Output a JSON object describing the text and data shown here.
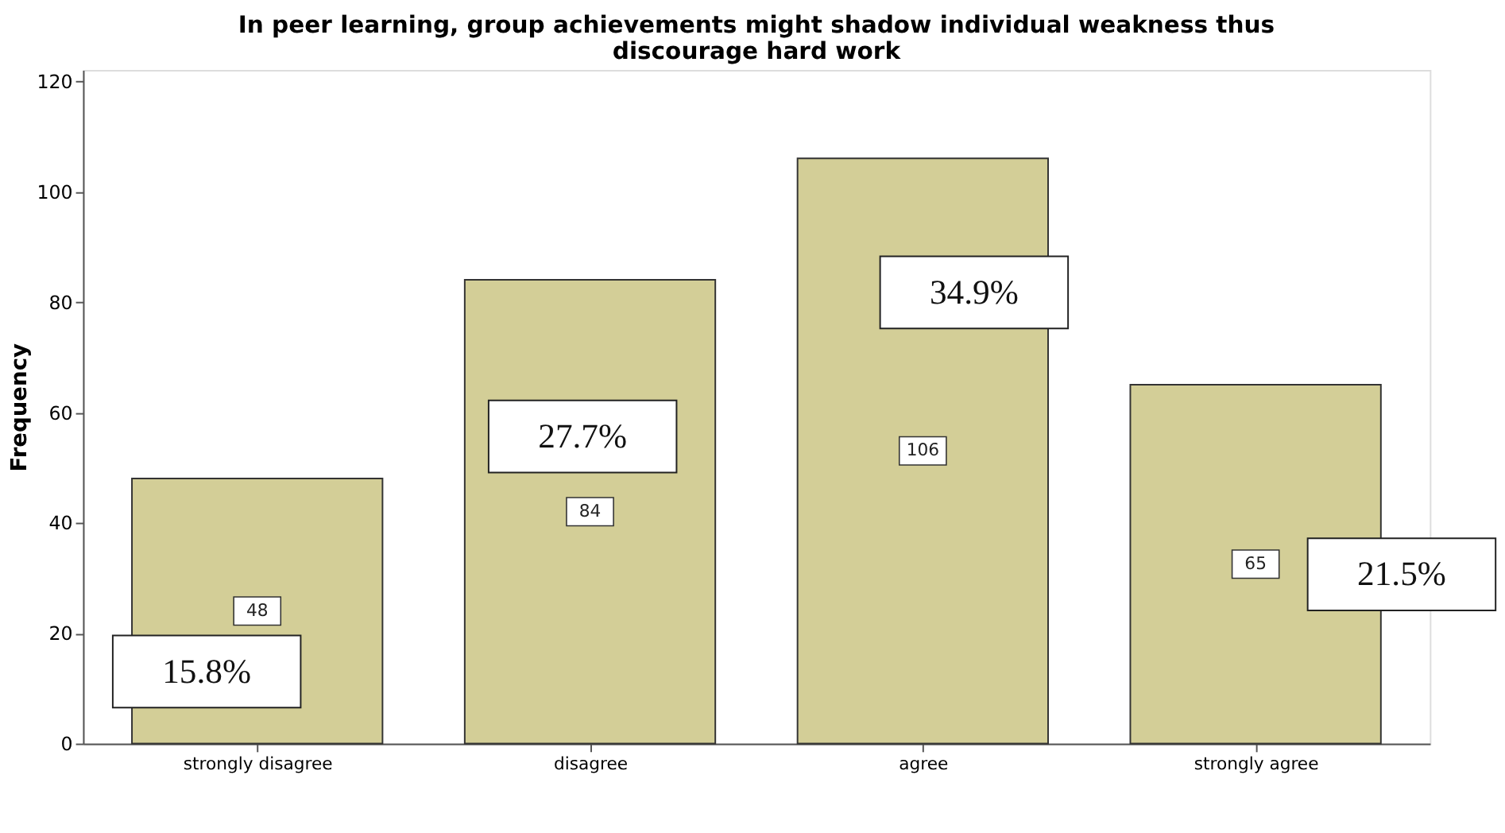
{
  "chart_data": {
    "type": "bar",
    "title": [
      "In peer learning, group achievements might shadow individual weakness thus",
      "discourage hard work"
    ],
    "ylabel": "Frequency",
    "categories": [
      "strongly disagree",
      "disagree",
      "agree",
      "strongly agree"
    ],
    "values": [
      48,
      84,
      106,
      65
    ],
    "color": "#d3ce97",
    "data_labels": true,
    "ylim": [
      0,
      122
    ],
    "yticks": [
      0,
      20,
      40,
      60,
      80,
      100,
      120
    ],
    "grid": false,
    "annotations": [
      "15.8%",
      "27.7%",
      "34.9%",
      "21.5%"
    ]
  }
}
